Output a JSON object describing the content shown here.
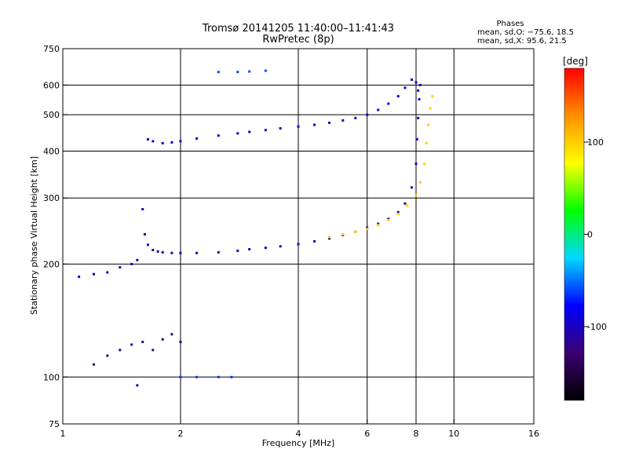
{
  "title": {
    "line1": "Tromsø 20141205 11:40:00–11:41:43",
    "line2": "RwPretec (8p)"
  },
  "phases": {
    "heading": "Phases",
    "o_line": "mean, sd,O: −75.6, 18.5",
    "x_line": "mean, sd,X:  95.6, 21.5"
  },
  "colors": {
    "background": "#ffffff",
    "grid": "#000000"
  },
  "chart_data": {
    "type": "scatter",
    "xlabel": "Frequency [MHz]",
    "ylabel": "Stationary phase Virtual Height [km]",
    "x_scale": "log",
    "y_scale": "log",
    "xlim": [
      1,
      16
    ],
    "ylim": [
      75,
      750
    ],
    "xticks": [
      1,
      2,
      4,
      6,
      8,
      10,
      16
    ],
    "yticks": [
      75,
      100,
      200,
      300,
      400,
      500,
      600,
      750
    ],
    "grid": true,
    "colorbar": {
      "label": "[deg]",
      "range": [
        -180,
        180
      ],
      "ticks": [
        100,
        0,
        -100
      ],
      "stops": [
        "#000000",
        "#3a0070",
        "#0000ff",
        "#00d8ff",
        "#00ff00",
        "#ffff00",
        "#ff9000",
        "#ff0000"
      ]
    },
    "series": [
      {
        "x": [
          1.6,
          1.62,
          1.65,
          1.7,
          1.75,
          1.8,
          1.9,
          2.0,
          2.2,
          2.5,
          2.8,
          3.0,
          3.3,
          3.6,
          4.0,
          4.4,
          4.8,
          5.2,
          5.6,
          6.0,
          6.4,
          6.8,
          7.2,
          7.5,
          7.8,
          8.0,
          8.05,
          8.1,
          8.15,
          8.2
        ],
        "y": [
          280,
          240,
          225,
          218,
          216,
          215,
          214,
          214,
          214,
          215,
          217,
          219,
          221,
          223,
          226,
          230,
          234,
          239,
          244,
          250,
          256,
          264,
          275,
          290,
          320,
          370,
          430,
          490,
          550,
          600
        ],
        "phase": -110
      },
      {
        "x": [
          1.65,
          1.7,
          1.8,
          1.9,
          2.0,
          2.2,
          2.5,
          2.8,
          3.0,
          3.3,
          3.6,
          4.0,
          4.4,
          4.8,
          5.2,
          5.6,
          6.0,
          6.4,
          6.8,
          7.2,
          7.5,
          7.8,
          8.0,
          8.1
        ],
        "y": [
          430,
          425,
          420,
          422,
          425,
          432,
          440,
          446,
          450,
          455,
          460,
          465,
          470,
          476,
          483,
          490,
          500,
          515,
          535,
          560,
          590,
          620,
          610,
          580
        ],
        "phase": -95
      },
      {
        "x": [
          4.8,
          5.2,
          5.6,
          6.0,
          6.4,
          6.8,
          7.2,
          7.6,
          8.0,
          8.2,
          8.4,
          8.5,
          8.6,
          8.7,
          8.8
        ],
        "y": [
          236,
          240,
          244,
          248,
          254,
          262,
          272,
          286,
          305,
          330,
          370,
          420,
          470,
          520,
          560
        ],
        "phase": 100
      },
      {
        "x": [
          1.2,
          1.3,
          1.4,
          1.5,
          1.55,
          1.6,
          1.7,
          1.8,
          1.9,
          2.0
        ],
        "y": [
          108,
          114,
          118,
          122,
          95,
          124,
          118,
          126,
          130,
          124
        ],
        "phase": -115
      },
      {
        "x": [
          1.1,
          1.2,
          1.3,
          1.4,
          1.5,
          1.55
        ],
        "y": [
          185,
          188,
          190,
          196,
          200,
          205
        ],
        "phase": -100
      },
      {
        "x": [
          2.0,
          2.2,
          2.5,
          2.7
        ],
        "y": [
          100,
          100,
          100,
          100
        ],
        "phase": -65
      },
      {
        "x": [
          2.5,
          2.8,
          3.0,
          3.3
        ],
        "y": [
          650,
          650,
          652,
          655
        ],
        "phase": -60
      }
    ]
  }
}
